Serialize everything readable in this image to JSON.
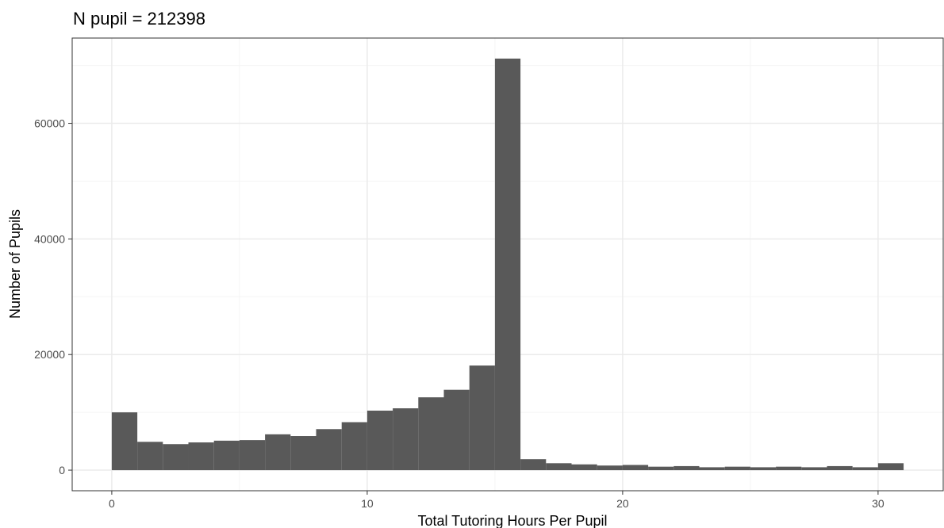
{
  "colors": {
    "bar": "#595959",
    "grid_major": "#ebebeb",
    "grid_minor": "#f5f5f5",
    "panel_border": "#333333",
    "tick_text": "#4d4d4d"
  },
  "chart_data": {
    "type": "bar",
    "subtype": "histogram",
    "title": "N pupil = 212398",
    "xlabel": "Total Tutoring Hours Per Pupil",
    "ylabel": "Number of Pupils",
    "x_ticks": [
      0,
      10,
      20,
      30
    ],
    "x_tick_labels": [
      "0",
      "10",
      "20",
      "30"
    ],
    "y_ticks": [
      0,
      20000,
      40000,
      60000
    ],
    "y_tick_labels": [
      "0",
      "20000",
      "40000",
      "60000"
    ],
    "xlim": [
      -1.55,
      32.55
    ],
    "ylim": [
      -3560,
      74750
    ],
    "grid": true,
    "legend": "none",
    "bin_width": 1,
    "bin_starts": [
      0,
      1,
      2,
      3,
      4,
      5,
      6,
      7,
      8,
      9,
      10,
      11,
      12,
      13,
      14,
      15,
      16,
      17,
      18,
      19,
      20,
      21,
      22,
      23,
      24,
      25,
      26,
      27,
      28,
      29,
      30
    ],
    "values": [
      10000,
      4900,
      4500,
      4800,
      5100,
      5200,
      6200,
      5900,
      7100,
      8300,
      10300,
      10700,
      12600,
      13900,
      18100,
      71200,
      1900,
      1200,
      1000,
      800,
      900,
      600,
      700,
      500,
      600,
      500,
      600,
      500,
      700,
      500,
      1200
    ]
  }
}
